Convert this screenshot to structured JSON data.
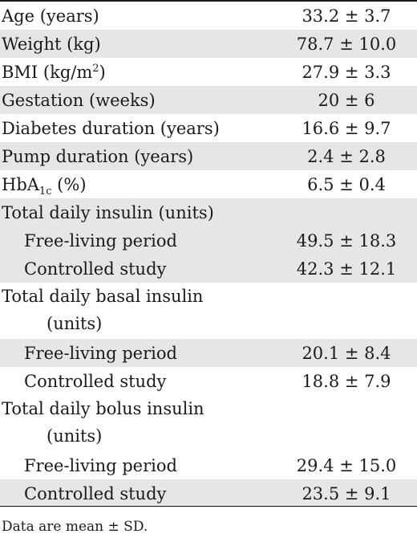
{
  "table": {
    "rows": [
      {
        "label": "Age (years)",
        "value": "33.2 ± 3.7"
      },
      {
        "label": "Weight (kg)",
        "value": "78.7 ± 10.0"
      },
      {
        "label_pre": "BMI (kg/m",
        "label_sup": "2",
        "label_post": ")",
        "value": "27.9 ± 3.3"
      },
      {
        "label": "Gestation (weeks)",
        "value": "20 ± 6"
      },
      {
        "label": "Diabetes duration (years)",
        "value": "16.6 ± 9.7"
      },
      {
        "label": "Pump duration (years)",
        "value": "2.4 ± 2.8"
      },
      {
        "label_pre": "HbA",
        "label_sub": "1c",
        "label_post": " (%)",
        "value": "6.5 ± 0.4"
      },
      {
        "label": "Total daily insulin (units)",
        "value": ""
      },
      {
        "label": "Free-living period",
        "value": "49.5 ± 18.3"
      },
      {
        "label": "Controlled study",
        "value": "42.3 ± 12.1"
      },
      {
        "label_line1": "Total daily basal insulin",
        "label_line2": "(units)",
        "value": ""
      },
      {
        "label": "Free-living period",
        "value": "20.1 ± 8.4"
      },
      {
        "label": "Controlled study",
        "value": "18.8 ± 7.9"
      },
      {
        "label_line1": "Total daily bolus insulin",
        "label_line2": "(units)",
        "value": ""
      },
      {
        "label": "Free-living period",
        "value": "29.4 ± 15.0"
      },
      {
        "label": "Controlled study",
        "value": "23.5 ± 9.1"
      }
    ]
  },
  "footnote": "Data are mean ± SD.",
  "colors": {
    "row_shading": "#e6e6e6",
    "text": "#1a1a1a"
  }
}
